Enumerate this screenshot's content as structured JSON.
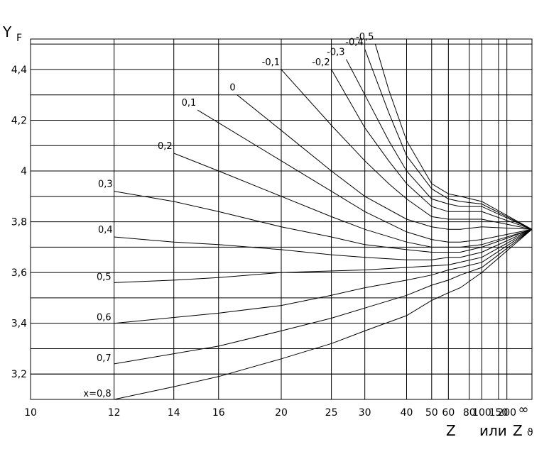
{
  "chart_data": {
    "type": "line",
    "title": "",
    "ylabel": {
      "main": "Y",
      "sub": "F"
    },
    "xlabel": {
      "main": "Z",
      "connector": "или",
      "alt": "Z",
      "alt_sub": "ϑ"
    },
    "x_ticks": [
      "10",
      "12",
      "14",
      "16",
      "20",
      "25",
      "30",
      "40",
      "50",
      "60",
      "80",
      "100",
      "150",
      "200",
      "∞"
    ],
    "y_ticks": [
      "3,2",
      "3,4",
      "3,6",
      "3,8",
      "4",
      "4,2",
      "4,4"
    ],
    "y_range": [
      3.1,
      4.52
    ],
    "grid": true,
    "x_scale": "reciprocal (1/Z)",
    "convergence": {
      "x": "∞",
      "y": 3.77
    },
    "series": [
      {
        "name": "-0,5",
        "points": [
          [
            32,
            4.5
          ],
          [
            35,
            4.32
          ],
          [
            40,
            4.12
          ],
          [
            50,
            3.95
          ],
          [
            60,
            3.91
          ],
          [
            70,
            3.9
          ],
          [
            100,
            3.88
          ]
        ]
      },
      {
        "name": "-0,4",
        "points": [
          [
            30,
            4.48
          ],
          [
            35,
            4.23
          ],
          [
            40,
            4.06
          ],
          [
            50,
            3.93
          ],
          [
            60,
            3.89
          ],
          [
            70,
            3.88
          ],
          [
            100,
            3.87
          ]
        ]
      },
      {
        "name": "-0,3",
        "points": [
          [
            27,
            4.44
          ],
          [
            30,
            4.3
          ],
          [
            35,
            4.12
          ],
          [
            40,
            4.0
          ],
          [
            50,
            3.89
          ],
          [
            60,
            3.87
          ],
          [
            70,
            3.86
          ],
          [
            100,
            3.86
          ]
        ]
      },
      {
        "name": "-0,2",
        "points": [
          [
            25,
            4.4
          ],
          [
            30,
            4.17
          ],
          [
            35,
            4.04
          ],
          [
            40,
            3.95
          ],
          [
            50,
            3.86
          ],
          [
            60,
            3.84
          ],
          [
            70,
            3.84
          ],
          [
            100,
            3.84
          ]
        ]
      },
      {
        "name": "-0,1",
        "points": [
          [
            20,
            4.4
          ],
          [
            25,
            4.18
          ],
          [
            30,
            4.04
          ],
          [
            35,
            3.95
          ],
          [
            40,
            3.89
          ],
          [
            50,
            3.82
          ],
          [
            60,
            3.81
          ],
          [
            70,
            3.81
          ],
          [
            100,
            3.81
          ]
        ]
      },
      {
        "name": "0",
        "points": [
          [
            17,
            4.3
          ],
          [
            20,
            4.16
          ],
          [
            25,
            4.0
          ],
          [
            30,
            3.9
          ],
          [
            40,
            3.81
          ],
          [
            50,
            3.78
          ],
          [
            60,
            3.77
          ],
          [
            70,
            3.77
          ],
          [
            100,
            3.78
          ]
        ]
      },
      {
        "name": "0,1",
        "points": [
          [
            15,
            4.24
          ],
          [
            20,
            4.04
          ],
          [
            25,
            3.92
          ],
          [
            30,
            3.84
          ],
          [
            40,
            3.76
          ],
          [
            50,
            3.73
          ],
          [
            60,
            3.72
          ],
          [
            70,
            3.72
          ],
          [
            100,
            3.73
          ]
        ]
      },
      {
        "name": "0,2",
        "points": [
          [
            14,
            4.07
          ],
          [
            16,
            4.0
          ],
          [
            20,
            3.9
          ],
          [
            25,
            3.82
          ],
          [
            30,
            3.77
          ],
          [
            40,
            3.72
          ],
          [
            50,
            3.7
          ],
          [
            60,
            3.7
          ],
          [
            70,
            3.7
          ],
          [
            100,
            3.71
          ]
        ]
      },
      {
        "name": "0,3",
        "points": [
          [
            12,
            3.92
          ],
          [
            14,
            3.88
          ],
          [
            16,
            3.84
          ],
          [
            20,
            3.78
          ],
          [
            25,
            3.74
          ],
          [
            30,
            3.71
          ],
          [
            40,
            3.69
          ],
          [
            50,
            3.68
          ],
          [
            60,
            3.68
          ],
          [
            70,
            3.68
          ],
          [
            100,
            3.7
          ]
        ]
      },
      {
        "name": "0,4",
        "points": [
          [
            12,
            3.74
          ],
          [
            14,
            3.72
          ],
          [
            16,
            3.71
          ],
          [
            20,
            3.69
          ],
          [
            25,
            3.67
          ],
          [
            30,
            3.66
          ],
          [
            40,
            3.65
          ],
          [
            50,
            3.65
          ],
          [
            60,
            3.66
          ],
          [
            70,
            3.66
          ],
          [
            100,
            3.68
          ]
        ]
      },
      {
        "name": "0,5",
        "points": [
          [
            12,
            3.56
          ],
          [
            14,
            3.57
          ],
          [
            16,
            3.58
          ],
          [
            20,
            3.6
          ],
          [
            30,
            3.61
          ],
          [
            40,
            3.62
          ],
          [
            60,
            3.63
          ],
          [
            100,
            3.66
          ]
        ]
      },
      {
        "name": "0,6",
        "points": [
          [
            12,
            3.4
          ],
          [
            16,
            3.44
          ],
          [
            20,
            3.47
          ],
          [
            25,
            3.51
          ],
          [
            30,
            3.54
          ],
          [
            40,
            3.57
          ],
          [
            50,
            3.59
          ],
          [
            60,
            3.61
          ],
          [
            70,
            3.62
          ],
          [
            100,
            3.64
          ]
        ]
      },
      {
        "name": "0,7",
        "points": [
          [
            12,
            3.24
          ],
          [
            16,
            3.31
          ],
          [
            20,
            3.37
          ],
          [
            25,
            3.42
          ],
          [
            30,
            3.46
          ],
          [
            40,
            3.51
          ],
          [
            50,
            3.55
          ],
          [
            60,
            3.57
          ],
          [
            70,
            3.59
          ],
          [
            100,
            3.62
          ]
        ]
      },
      {
        "name": "x=0,8",
        "points": [
          [
            12,
            3.1
          ],
          [
            14,
            3.15
          ],
          [
            16,
            3.19
          ],
          [
            20,
            3.26
          ],
          [
            25,
            3.32
          ],
          [
            30,
            3.37
          ],
          [
            40,
            3.43
          ],
          [
            50,
            3.49
          ],
          [
            60,
            3.52
          ],
          [
            70,
            3.54
          ],
          [
            100,
            3.6
          ]
        ]
      }
    ]
  }
}
